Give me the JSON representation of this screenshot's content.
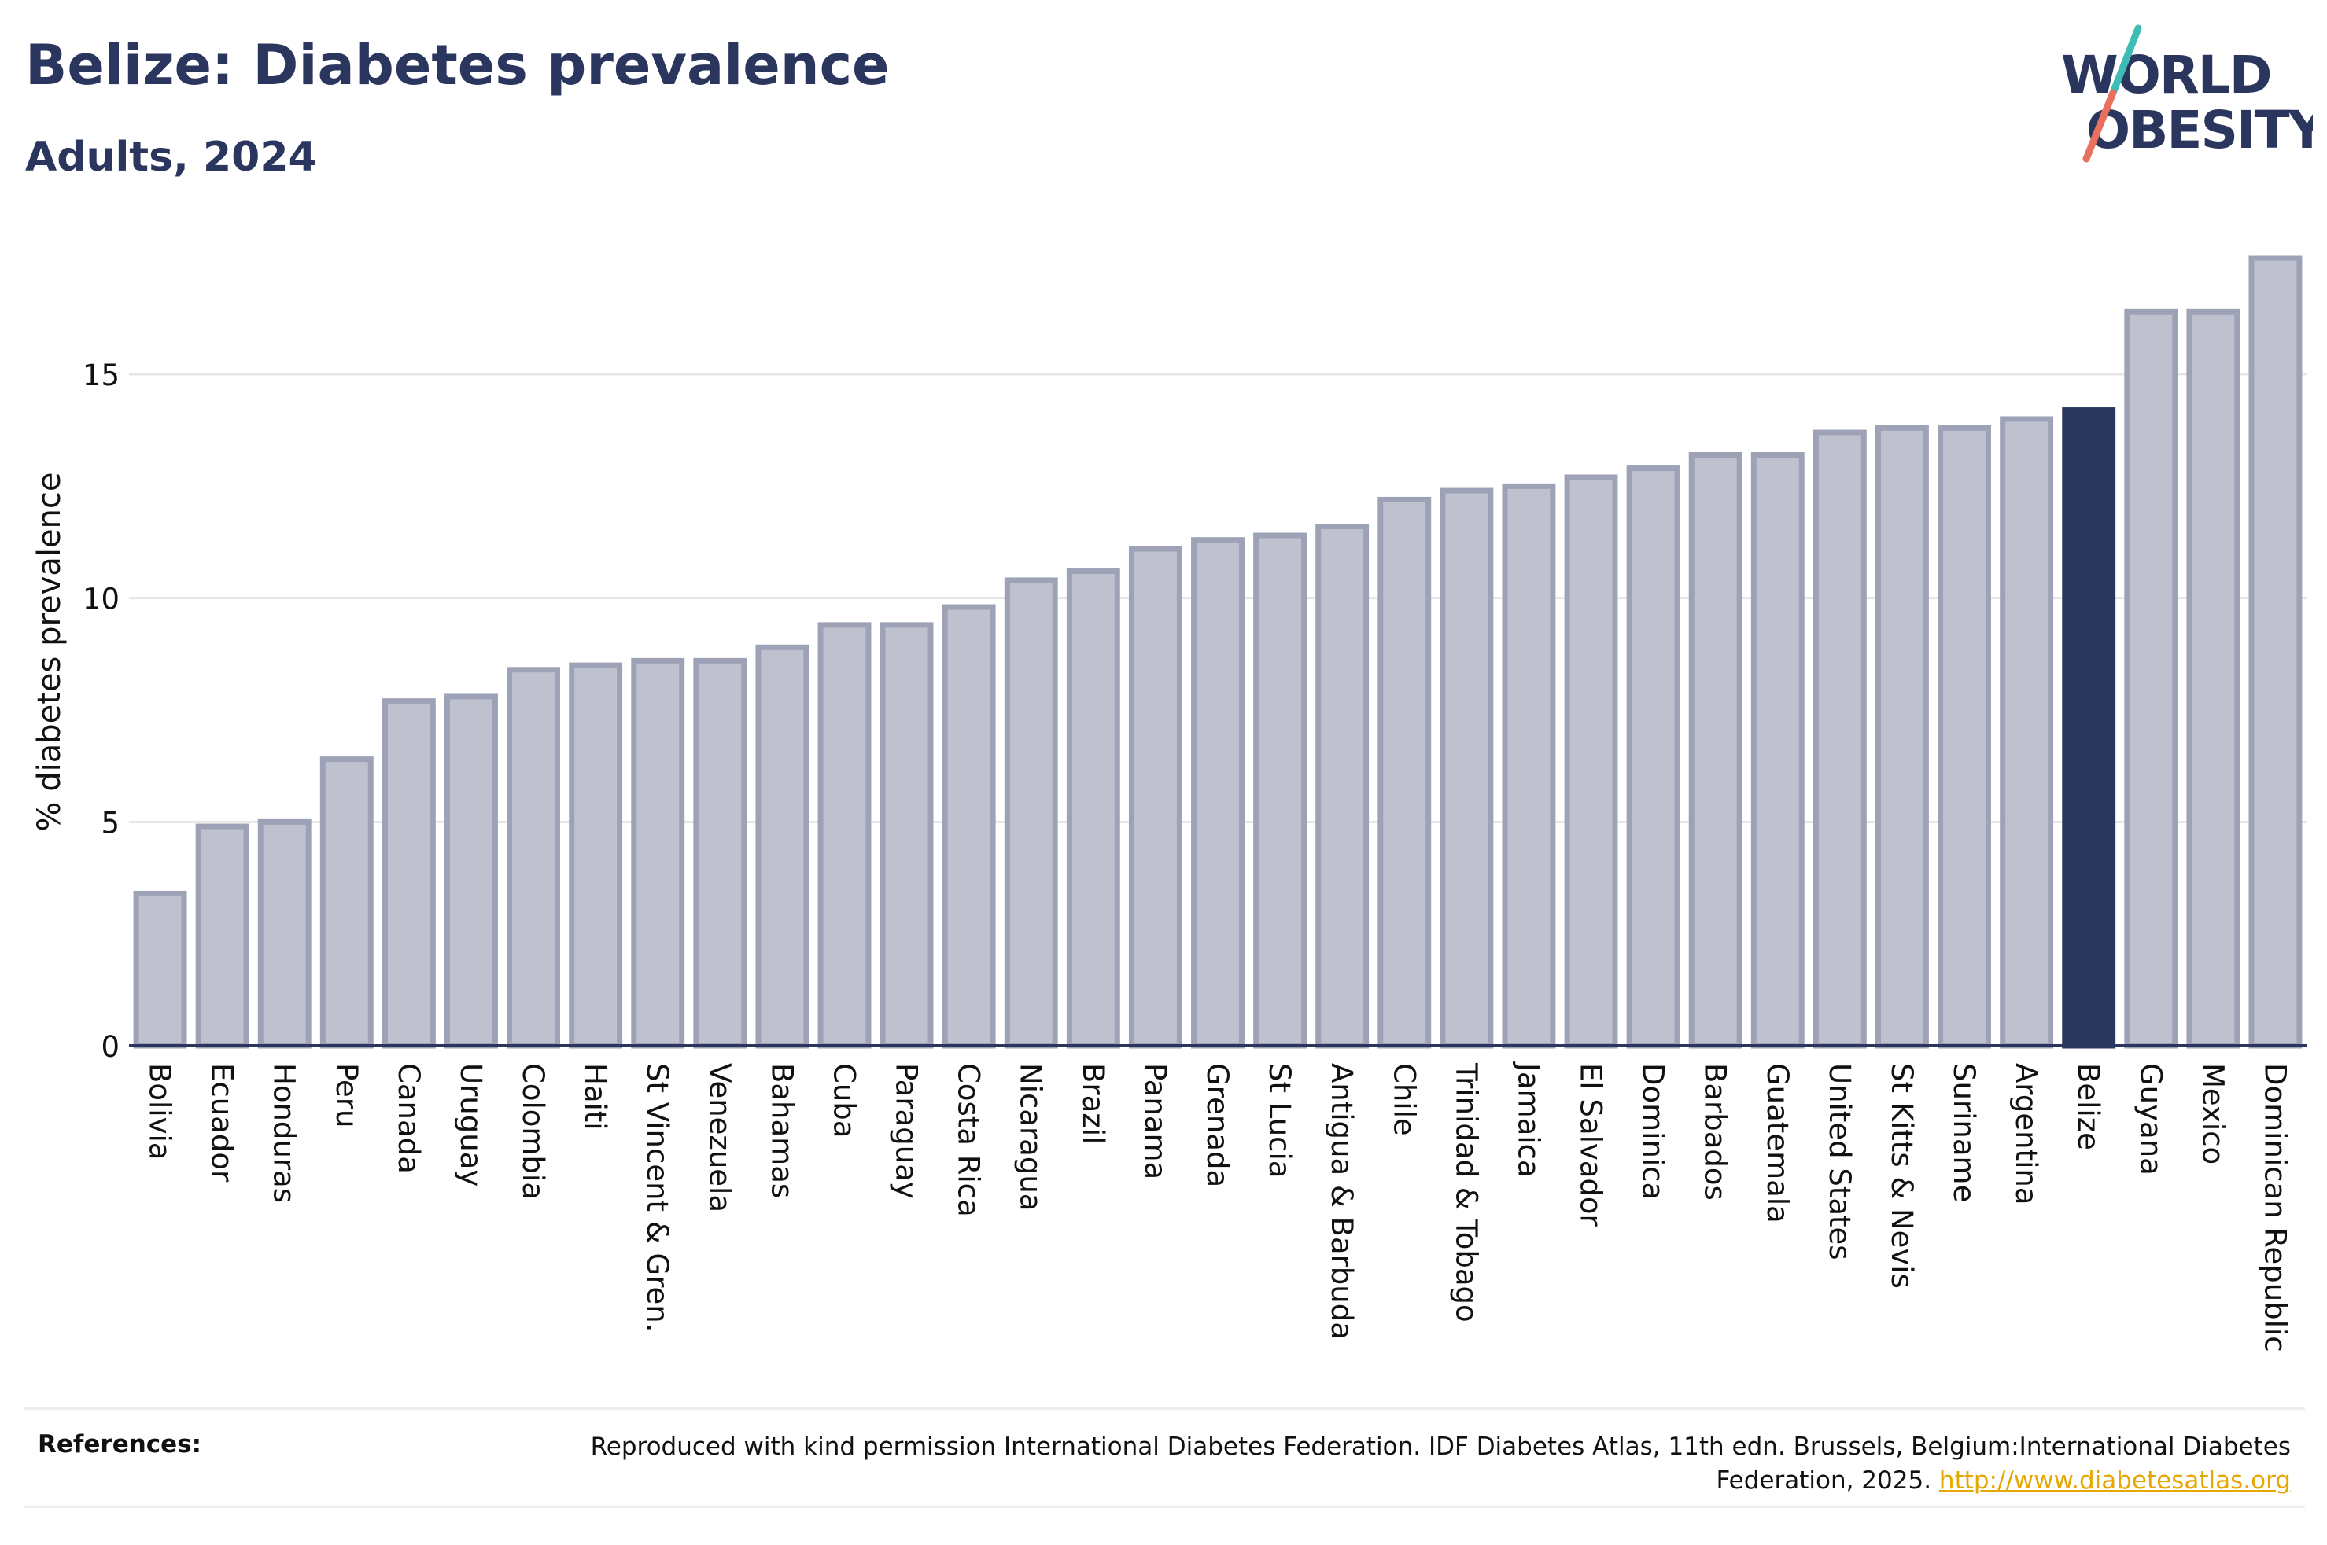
{
  "header": {
    "title": "Belize: Diabetes prevalence",
    "subtitle": "Adults, 2024"
  },
  "logo": {
    "line1": "WORLD",
    "line2": "OBESITY",
    "colors": {
      "text": "#2b365e",
      "slash_top": "#3dbdb3",
      "slash_bottom": "#e8705e"
    }
  },
  "chart_data": {
    "type": "bar",
    "title": "Belize: Diabetes prevalence",
    "subtitle": "Adults, 2024",
    "xlabel": "",
    "ylabel": "% diabetes prevalence",
    "ylim": [
      0,
      17.6
    ],
    "yticks": [
      0,
      5,
      10,
      15
    ],
    "grid": true,
    "highlight": "Belize",
    "colors": {
      "bar": "#bfc2ce",
      "bar_border": "#9ea2b6",
      "highlight": "#2b365e",
      "grid": "#e6e6e6",
      "axis": "#2b365e"
    },
    "categories": [
      "Bolivia",
      "Ecuador",
      "Honduras",
      "Peru",
      "Canada",
      "Uruguay",
      "Colombia",
      "Haiti",
      "St Vincent & Gren.",
      "Venezuela",
      "Bahamas",
      "Cuba",
      "Paraguay",
      "Costa Rica",
      "Nicaragua",
      "Brazil",
      "Panama",
      "Grenada",
      "St Lucia",
      "Antigua & Barbuda",
      "Chile",
      "Trinidad & Tobago",
      "Jamaica",
      "El Salvador",
      "Dominica",
      "Barbados",
      "Guatemala",
      "United States",
      "St Kitts & Nevis",
      "Suriname",
      "Argentina",
      "Belize",
      "Guyana",
      "Mexico",
      "Dominican Republic"
    ],
    "values": [
      3.4,
      4.9,
      5.0,
      6.4,
      7.7,
      7.8,
      8.4,
      8.5,
      8.6,
      8.6,
      8.9,
      9.4,
      9.4,
      9.8,
      10.4,
      10.6,
      11.1,
      11.3,
      11.4,
      11.6,
      12.2,
      12.4,
      12.5,
      12.7,
      12.9,
      13.2,
      13.2,
      13.7,
      13.8,
      13.8,
      14.0,
      14.2,
      16.4,
      16.4,
      17.6
    ]
  },
  "references": {
    "label": "References:",
    "text": "Reproduced with kind permission International Diabetes Federation. IDF Diabetes Atlas, 11th edn. Brussels, Belgium:International Diabetes Federation, 2025.",
    "link": "http://www.diabetesatlas.org"
  }
}
